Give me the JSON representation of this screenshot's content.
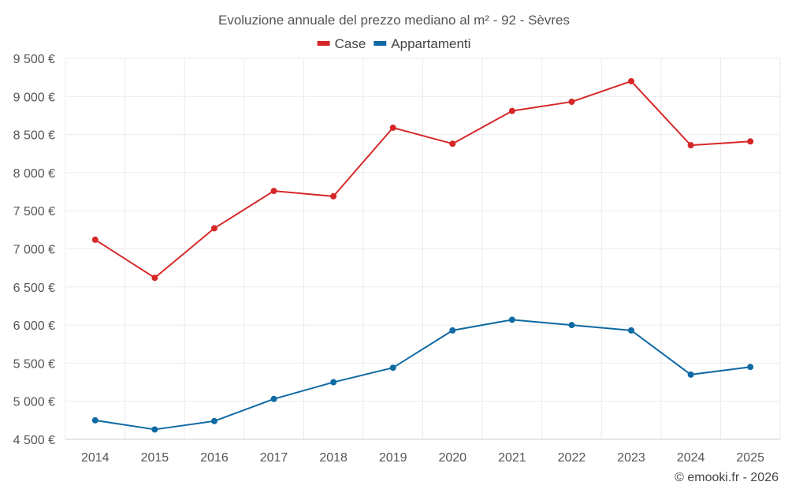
{
  "chart_data": {
    "type": "line",
    "title": "Evoluzione annuale del prezzo mediano al m² - 92 - Sèvres",
    "categories": [
      "2014",
      "2015",
      "2016",
      "2017",
      "2018",
      "2019",
      "2020",
      "2021",
      "2022",
      "2023",
      "2024",
      "2025"
    ],
    "series": [
      {
        "name": "Case",
        "color": "#d62728",
        "values": [
          7120,
          6620,
          7270,
          7760,
          7690,
          8590,
          8380,
          8810,
          8930,
          9200,
          8360,
          8410
        ]
      },
      {
        "name": "Appartamenti",
        "color": "#0f6aa3",
        "values": [
          4750,
          4630,
          4740,
          5030,
          5250,
          5440,
          5930,
          6070,
          6000,
          5930,
          5350,
          5450
        ]
      }
    ],
    "y_ticks": [
      4500,
      5000,
      5500,
      6000,
      6500,
      7000,
      7500,
      8000,
      8500,
      9000,
      9500
    ],
    "y_tick_labels": [
      "4 500 €",
      "5 000 €",
      "5 500 €",
      "6 000 €",
      "6 500 €",
      "7 000 €",
      "7 500 €",
      "8 000 €",
      "8 500 €",
      "9 000 €",
      "9 500 €"
    ],
    "ylim": [
      4500,
      9500
    ],
    "grid": true,
    "legend_position": "top-center",
    "xlabel": "",
    "ylabel": ""
  },
  "credit": "© emooki.fr - 2026"
}
